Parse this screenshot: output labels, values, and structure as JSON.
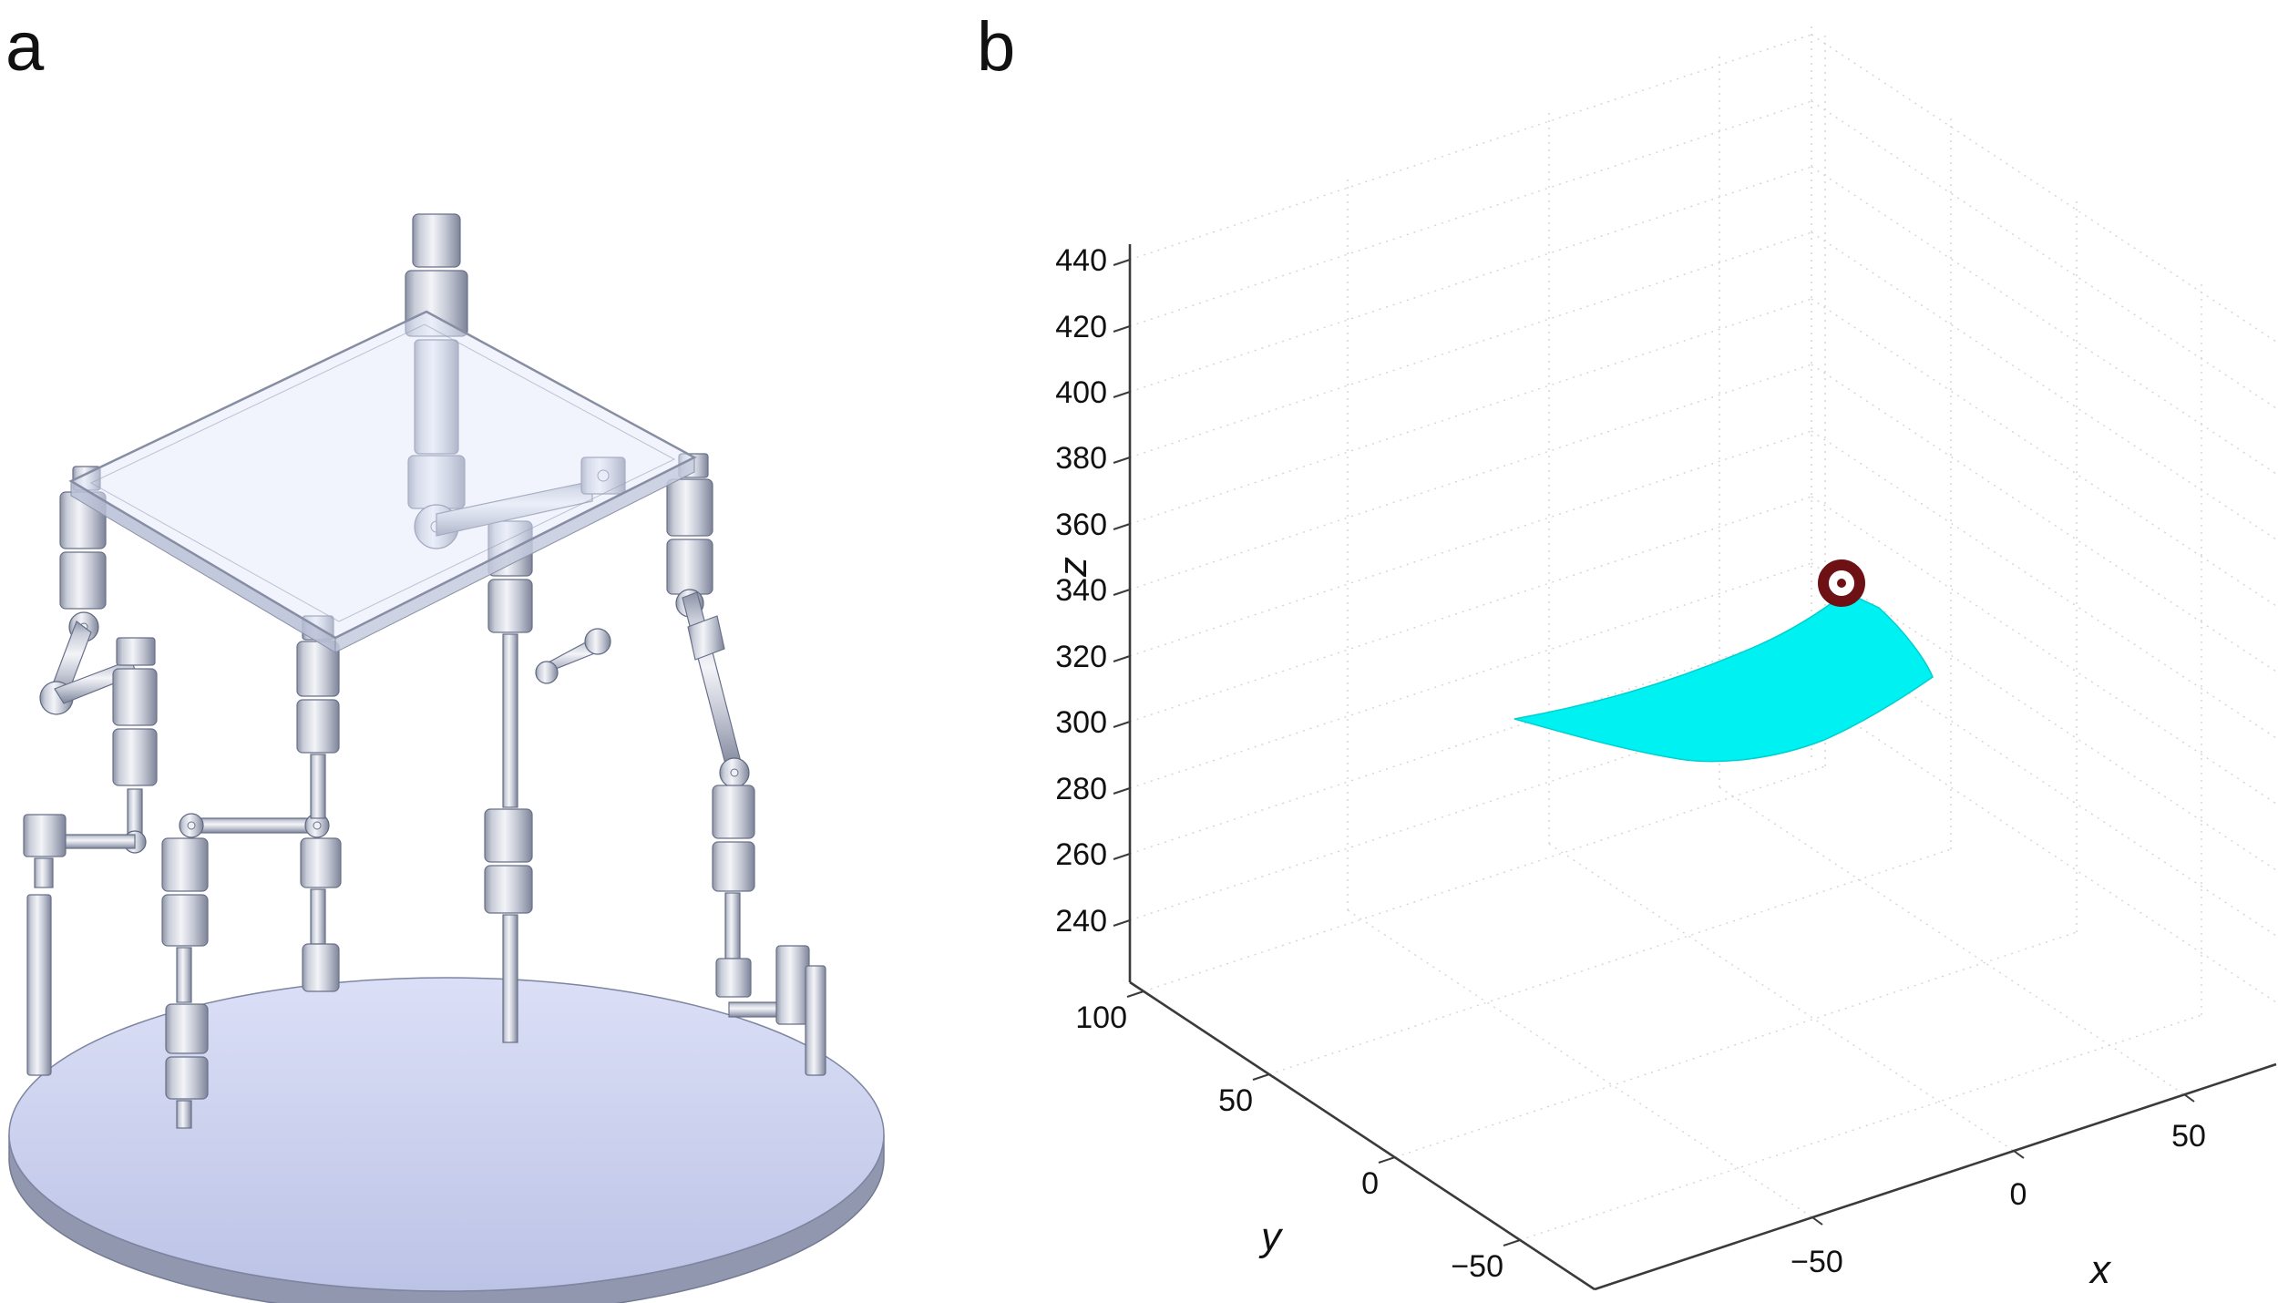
{
  "figure": {
    "panels": {
      "a": {
        "label": "a"
      },
      "b": {
        "label": "b"
      }
    }
  },
  "chart_data": {
    "type": "surface",
    "title": "",
    "projection": "3d",
    "grid": true,
    "axes": {
      "x": {
        "label": "x",
        "tick_labels": [
          "−50",
          "0",
          "50"
        ],
        "ticks": [
          -50,
          0,
          50
        ]
      },
      "y": {
        "label": "y",
        "tick_labels": [
          "100",
          "50",
          "0",
          "−50"
        ],
        "ticks": [
          100,
          50,
          0,
          -50
        ]
      },
      "z": {
        "label": "z",
        "tick_labels": [
          "440",
          "420",
          "400",
          "380",
          "360",
          "340",
          "320",
          "300",
          "280",
          "260",
          "240"
        ],
        "ticks": [
          440,
          420,
          400,
          380,
          360,
          340,
          320,
          300,
          280,
          260,
          240
        ]
      }
    },
    "series": [
      {
        "name": "workspace-surface",
        "type": "surface-patch",
        "color": "#00F0F0",
        "x_range_approx": [
          -40,
          60
        ],
        "y_range_approx": [
          -20,
          60
        ],
        "z_range_approx": [
          295,
          350
        ]
      },
      {
        "name": "target-point-marker",
        "type": "marker",
        "symbol": "circled-dot",
        "color": "#6E1114",
        "point_approx": {
          "x": 30,
          "y": 40,
          "z": 350
        }
      }
    ]
  }
}
